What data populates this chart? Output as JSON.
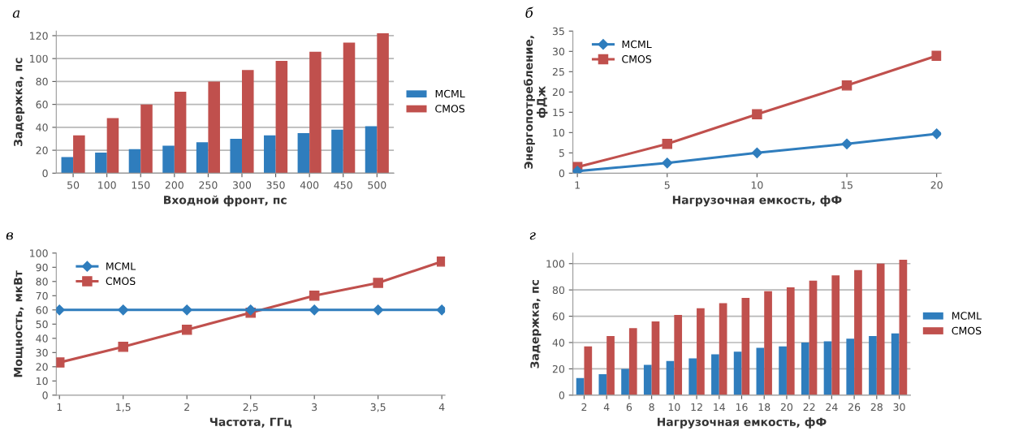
{
  "chart_data": [
    {
      "type": "bar",
      "title": "а",
      "xlabel": "Входной фронт, пс",
      "ylabel": "Задержка, пс",
      "categories": [
        "50",
        "100",
        "150",
        "200",
        "250",
        "300",
        "350",
        "400",
        "450",
        "500"
      ],
      "series": [
        {
          "name": "MCML",
          "color": "#2f7dbd",
          "values": [
            14,
            18,
            21,
            24,
            27,
            30,
            33,
            35,
            38,
            41
          ]
        },
        {
          "name": "CMOS",
          "color": "#c0504d",
          "values": [
            33,
            48,
            60,
            71,
            80,
            90,
            98,
            106,
            114,
            122
          ]
        }
      ],
      "ylim": [
        0,
        124
      ],
      "yticks": [
        0,
        20,
        40,
        60,
        80,
        100,
        120
      ],
      "grid": "y",
      "legend": "right"
    },
    {
      "type": "line",
      "title": "б",
      "xlabel": "Нагрузочная емкость, фФ",
      "ylabel": "Энергопотребление,\nфДж",
      "categories": [
        "1",
        "5",
        "10",
        "15",
        "20"
      ],
      "series": [
        {
          "name": "MCML",
          "color": "#2f7dbd",
          "values": [
            0.5,
            2.5,
            5,
            7.2,
            9.7
          ],
          "marker": "diamond"
        },
        {
          "name": "CMOS",
          "color": "#c0504d",
          "values": [
            1.5,
            7.2,
            14.5,
            21.6,
            28.9
          ],
          "marker": "square"
        }
      ],
      "ylim": [
        0,
        35
      ],
      "yticks": [
        0,
        5,
        10,
        15,
        20,
        25,
        30,
        35
      ],
      "grid": false,
      "legend": "top left"
    },
    {
      "type": "line",
      "title": "в",
      "xlabel": "Частота, ГГц",
      "ylabel": "Мощность, мкВт",
      "categories": [
        "1",
        "1,5",
        "2",
        "2,5",
        "3",
        "3,5",
        "4"
      ],
      "series": [
        {
          "name": "MCML",
          "color": "#2f7dbd",
          "values": [
            60,
            60,
            60,
            60,
            60,
            60,
            60
          ],
          "marker": "diamond"
        },
        {
          "name": "CMOS",
          "color": "#c0504d",
          "values": [
            23,
            34,
            46,
            58,
            70,
            79,
            94
          ],
          "marker": "square"
        }
      ],
      "ylim": [
        0,
        100
      ],
      "yticks": [
        0,
        10,
        20,
        30,
        40,
        50,
        60,
        70,
        80,
        90,
        100
      ],
      "grid": false,
      "legend": "top left"
    },
    {
      "type": "bar",
      "title": "г",
      "xlabel": "Нагрузочная емкость, фФ",
      "ylabel": "Задержка, пс",
      "categories": [
        "2",
        "4",
        "6",
        "8",
        "10",
        "12",
        "14",
        "16",
        "18",
        "20",
        "22",
        "24",
        "26",
        "28",
        "30"
      ],
      "series": [
        {
          "name": "MCML",
          "color": "#2f7dbd",
          "values": [
            13,
            16,
            20,
            23,
            26,
            28,
            31,
            33,
            36,
            37,
            40,
            41,
            43,
            45,
            47
          ]
        },
        {
          "name": "CMOS",
          "color": "#c0504d",
          "values": [
            37,
            45,
            51,
            56,
            61,
            66,
            70,
            74,
            79,
            82,
            87,
            91,
            95,
            100,
            103
          ]
        }
      ],
      "ylim": [
        0,
        108
      ],
      "yticks": [
        0,
        20,
        40,
        60,
        80,
        100
      ],
      "grid": "y",
      "legend": "right"
    }
  ]
}
